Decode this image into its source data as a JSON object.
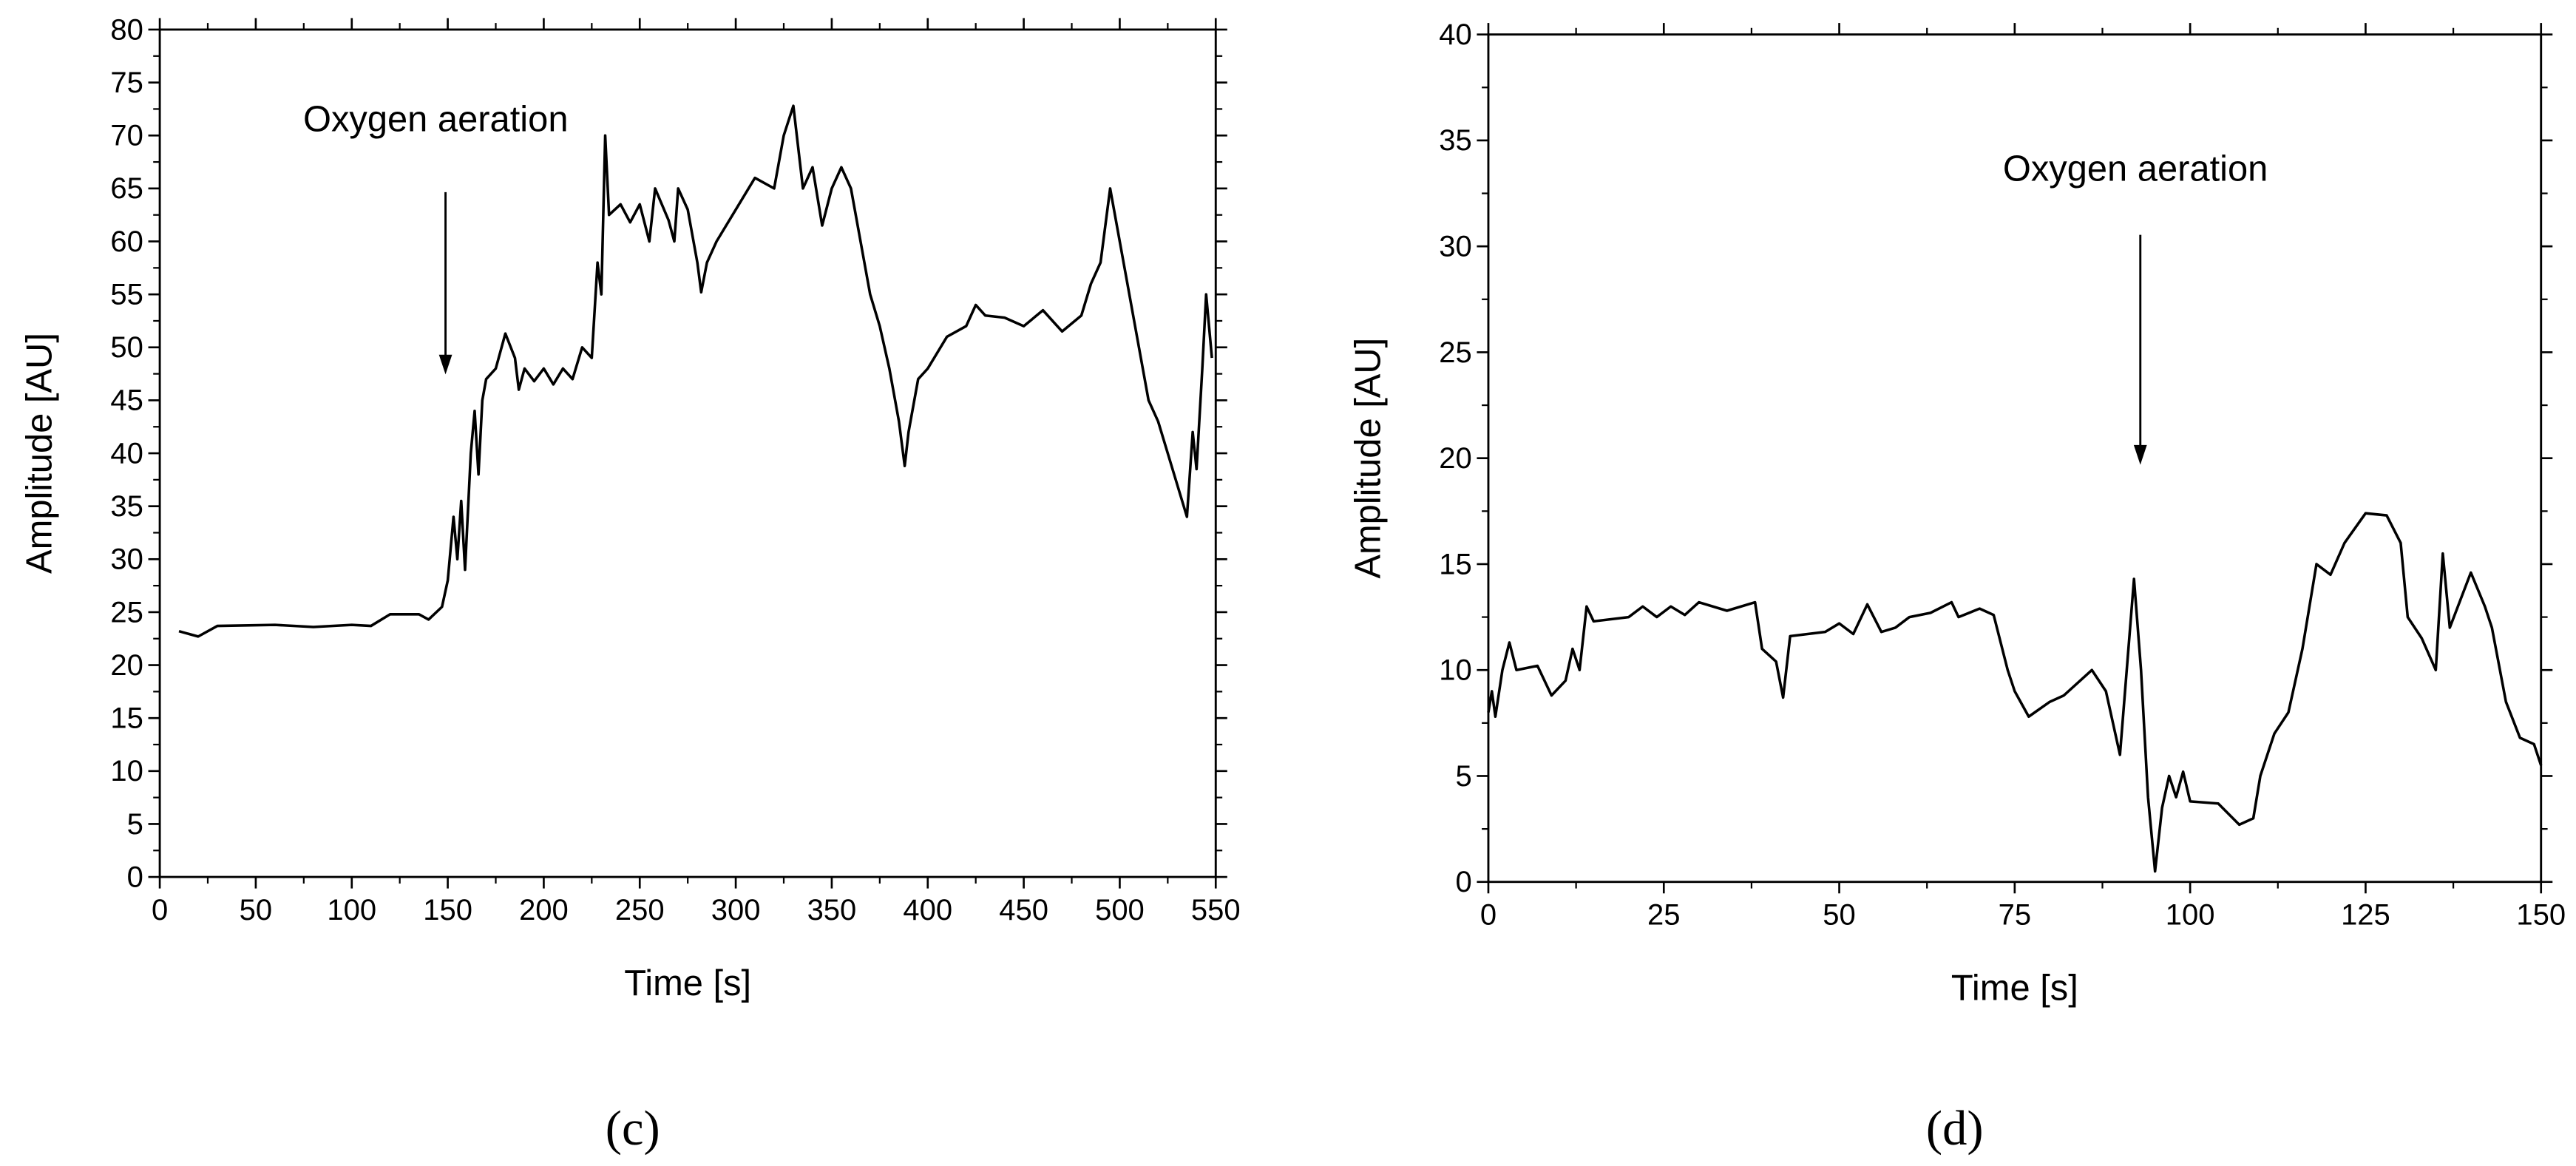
{
  "chart_data": [
    {
      "type": "line",
      "caption": "(c)",
      "annotation": "Oxygen aeration",
      "xlabel": "Time [s]",
      "ylabel": "Amplitude [AU]",
      "color": "#000000",
      "xlim": [
        0,
        550
      ],
      "xticks": [
        0,
        50,
        100,
        150,
        200,
        250,
        300,
        350,
        400,
        450,
        500,
        550
      ],
      "ylim": [
        0,
        80
      ],
      "yticks": [
        0,
        5,
        10,
        15,
        20,
        25,
        30,
        35,
        40,
        45,
        50,
        55,
        60,
        65,
        70,
        75,
        80
      ],
      "x": [
        10,
        20,
        30,
        60,
        80,
        100,
        110,
        120,
        135,
        140,
        147,
        150,
        153,
        155,
        157,
        159,
        162,
        164,
        166,
        168,
        170,
        175,
        180,
        185,
        187,
        190,
        195,
        200,
        205,
        210,
        215,
        220,
        225,
        228,
        230,
        232,
        234,
        240,
        245,
        250,
        255,
        258,
        265,
        268,
        270,
        275,
        280,
        282,
        285,
        290,
        300,
        310,
        320,
        325,
        330,
        335,
        340,
        345,
        350,
        355,
        360,
        365,
        370,
        375,
        380,
        385,
        388,
        390,
        395,
        400,
        410,
        420,
        425,
        430,
        440,
        450,
        460,
        470,
        480,
        485,
        490,
        495,
        500,
        505,
        510,
        515,
        520,
        525,
        530,
        535,
        538,
        540,
        543,
        545,
        548
      ],
      "values": [
        23.2,
        22.7,
        23.7,
        23.8,
        23.6,
        23.8,
        23.7,
        24.8,
        24.8,
        24.3,
        25.5,
        28,
        34,
        30,
        35.5,
        29,
        40,
        44,
        38,
        45,
        47,
        48,
        51.3,
        49,
        46,
        48,
        46.8,
        48,
        46.5,
        48,
        47,
        50,
        49,
        58,
        55,
        70,
        62.5,
        63.5,
        61.8,
        63.5,
        60,
        65,
        62,
        60,
        65,
        63,
        58,
        55.2,
        58,
        60,
        63,
        66,
        65,
        70,
        72.8,
        65,
        67,
        61.5,
        65,
        67,
        65,
        60,
        55,
        52,
        48,
        43,
        38.8,
        42,
        47,
        48,
        51,
        52,
        54,
        53,
        52.8,
        52,
        53.5,
        51.5,
        53,
        56,
        58,
        65,
        60,
        55,
        50,
        45,
        43,
        40,
        37,
        34,
        42,
        38.5,
        48,
        55,
        49
      ]
    },
    {
      "type": "line",
      "caption": "(d)",
      "annotation": "Oxygen aeration",
      "xlabel": "Time [s]",
      "ylabel": "Amplitude [AU]",
      "color": "#000000",
      "xlim": [
        0,
        150
      ],
      "xticks": [
        0,
        25,
        50,
        75,
        100,
        125,
        150
      ],
      "ylim": [
        0,
        40
      ],
      "yticks": [
        0,
        5,
        10,
        15,
        20,
        25,
        30,
        35,
        40
      ],
      "x": [
        0,
        0.5,
        1,
        2,
        3,
        4,
        7,
        9,
        11,
        12,
        13,
        14,
        15,
        20,
        22,
        24,
        26,
        28,
        30,
        34,
        38,
        39,
        41,
        42,
        43,
        48,
        50,
        52,
        54,
        56,
        58,
        60,
        63,
        66,
        67,
        70,
        72,
        74,
        75,
        77,
        80,
        82,
        86,
        88,
        90,
        92,
        93,
        94,
        95,
        96,
        97,
        98,
        99,
        100,
        104,
        107,
        109,
        110,
        112,
        114,
        116,
        117,
        118,
        120,
        122,
        125,
        128,
        130,
        131,
        133,
        135,
        136,
        137,
        140,
        142,
        143,
        145,
        147,
        149,
        150
      ],
      "values": [
        8,
        9,
        7.8,
        10,
        11.3,
        10,
        10.2,
        8.8,
        9.5,
        11,
        10,
        13,
        12.3,
        12.5,
        13,
        12.5,
        13,
        12.6,
        13.2,
        12.8,
        13.2,
        11,
        10.4,
        8.7,
        11.6,
        11.8,
        12.2,
        11.7,
        13.1,
        11.8,
        12,
        12.5,
        12.7,
        13.2,
        12.5,
        12.9,
        12.6,
        10,
        9,
        7.8,
        8.5,
        8.8,
        10,
        9,
        6,
        14.3,
        10,
        4,
        0.5,
        3.5,
        5,
        4,
        5.2,
        3.8,
        3.7,
        2.7,
        3,
        5,
        7,
        8,
        11,
        13,
        15,
        14.5,
        16,
        17.4,
        17.3,
        16,
        12.5,
        11.5,
        10,
        15.5,
        12,
        14.6,
        13,
        12,
        8.5,
        6.8,
        6.5,
        5.5
      ]
    }
  ]
}
